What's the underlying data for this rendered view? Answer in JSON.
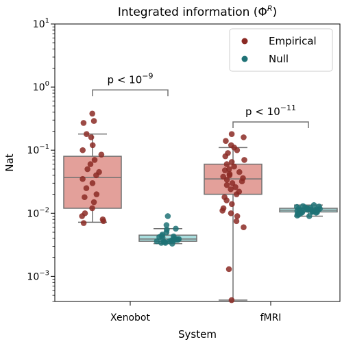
{
  "chart_data": {
    "type": "box_strip",
    "title": "Integrated information (Φ^R)",
    "title_parts": {
      "main": "Integrated information (Φ",
      "sup": "R",
      "end": ")"
    },
    "xlabel": "System",
    "ylabel": "Nat",
    "yscale": "log",
    "ylim": [
      0.0004,
      10
    ],
    "yticks": [
      {
        "base": "10",
        "exp": "1",
        "value": 10
      },
      {
        "base": "10",
        "exp": "0",
        "value": 1
      },
      {
        "base": "10",
        "exp": "−1",
        "value": 0.1
      },
      {
        "base": "10",
        "exp": "−2",
        "value": 0.01
      },
      {
        "base": "10",
        "exp": "−3",
        "value": 0.001
      }
    ],
    "categories": [
      "Xenobot",
      "fMRI"
    ],
    "colors": {
      "empirical_box": "#e3a09a",
      "empirical_point": "#8b2a24",
      "null_box": "#a9dede",
      "null_point": "#1f7276",
      "box_edge": "#707070"
    },
    "legend": {
      "placement": "top-right",
      "entries": [
        "Empirical",
        "Null"
      ]
    },
    "series": [
      {
        "name": "Empirical",
        "boxes": [
          {
            "category": "Xenobot",
            "whisker_low": 0.0072,
            "q1": 0.012,
            "median": 0.037,
            "q3": 0.08,
            "whisker_high": 0.18,
            "points": [
              0.38,
              0.29,
              0.27,
              0.18,
              0.16,
              0.12,
              0.1,
              0.085,
              0.07,
              0.06,
              0.05,
              0.045,
              0.04,
              0.035,
              0.03,
              0.025,
              0.02,
              0.018,
              0.015,
              0.012,
              0.01,
              0.009,
              0.008,
              0.0075,
              0.007
            ]
          },
          {
            "category": "fMRI",
            "whisker_low": 0.00042,
            "q1": 0.02,
            "median": 0.035,
            "q3": 0.06,
            "whisker_high": 0.11,
            "points": [
              0.18,
              0.16,
              0.14,
              0.12,
              0.11,
              0.1,
              0.09,
              0.08,
              0.07,
              0.065,
              0.06,
              0.055,
              0.05,
              0.048,
              0.045,
              0.042,
              0.04,
              0.038,
              0.036,
              0.034,
              0.032,
              0.03,
              0.028,
              0.026,
              0.024,
              0.022,
              0.02,
              0.018,
              0.016,
              0.014,
              0.012,
              0.011,
              0.01,
              0.009,
              0.0075,
              0.006,
              0.0013,
              0.00042
            ]
          }
        ]
      },
      {
        "name": "Null",
        "boxes": [
          {
            "category": "Xenobot",
            "whisker_low": 0.0033,
            "q1": 0.0036,
            "median": 0.0039,
            "q3": 0.0045,
            "whisker_high": 0.0057,
            "points": [
              0.009,
              0.0065,
              0.0057,
              0.0055,
              0.005,
              0.0046,
              0.0044,
              0.0043,
              0.0042,
              0.0041,
              0.004,
              0.0039,
              0.0039,
              0.0038,
              0.0038,
              0.0037,
              0.0037,
              0.0036,
              0.0036,
              0.0035,
              0.0035,
              0.0034,
              0.0034,
              0.0033
            ]
          },
          {
            "category": "fMRI",
            "whisker_low": 0.009,
            "q1": 0.0105,
            "median": 0.0112,
            "q3": 0.012,
            "whisker_high": 0.0135,
            "points": [
              0.0135,
              0.013,
              0.0128,
              0.0126,
              0.0124,
              0.0122,
              0.012,
              0.0119,
              0.0118,
              0.0117,
              0.0116,
              0.0115,
              0.0114,
              0.0113,
              0.0112,
              0.0111,
              0.011,
              0.0109,
              0.0108,
              0.0107,
              0.0106,
              0.0105,
              0.0104,
              0.0103,
              0.0102,
              0.01,
              0.0098,
              0.0095,
              0.0092,
              0.009
            ]
          }
        ]
      }
    ],
    "annotations": [
      {
        "category": "Xenobot",
        "text": "p < 10",
        "exp": "−9",
        "bracket_value": 0.9
      },
      {
        "category": "fMRI",
        "text": "p < 10",
        "exp": "−11",
        "bracket_value": 0.28
      }
    ]
  }
}
